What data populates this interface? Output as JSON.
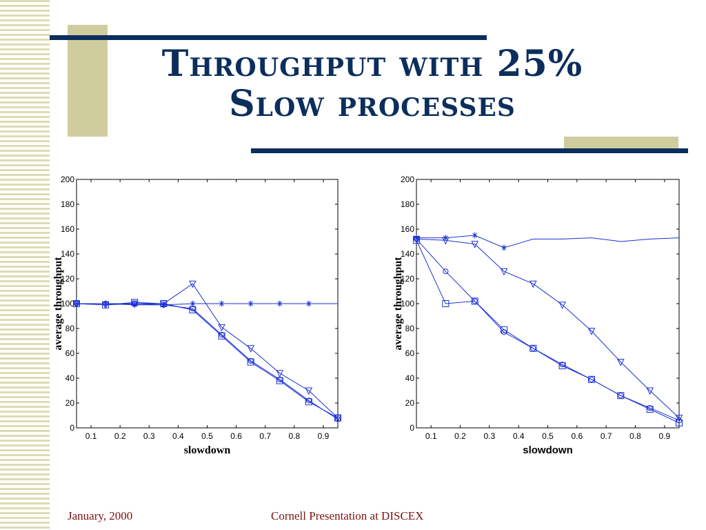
{
  "slide": {
    "title_line1": "Throughput with 25%",
    "title_line2": "Slow processes",
    "footer_left": "January, 2000",
    "footer_center": "Cornell Presentation at DISCEX",
    "colors": {
      "title": "#0b2e5c",
      "accent_bar": "#0b2e5c",
      "accent_block": "#cfcd9e",
      "footer": "#7a1010",
      "series": "#1a2fd6"
    }
  },
  "chart_data": [
    {
      "type": "line",
      "xlabel": "slowdown",
      "ylabel": "average throughput",
      "xlim": [
        0.05,
        0.95
      ],
      "ylim": [
        0,
        200
      ],
      "xticks": [
        0.1,
        0.2,
        0.3,
        0.4,
        0.5,
        0.6,
        0.7,
        0.8,
        0.9
      ],
      "yticks": [
        0,
        20,
        40,
        60,
        80,
        100,
        120,
        140,
        160,
        180,
        200
      ],
      "x": [
        0.05,
        0.15,
        0.25,
        0.35,
        0.45,
        0.55,
        0.65,
        0.75,
        0.85,
        0.95
      ],
      "series": [
        {
          "marker": "star",
          "values": [
            100,
            100,
            99,
            99,
            100,
            100,
            100,
            100,
            100,
            100
          ],
          "markers_until": 0.85
        },
        {
          "marker": "triangle",
          "values": [
            100,
            99,
            100,
            100,
            116,
            81,
            64,
            44,
            30,
            8
          ]
        },
        {
          "marker": "circle",
          "values": [
            100,
            100,
            100,
            99,
            96,
            75,
            54,
            39,
            22,
            7
          ]
        },
        {
          "marker": "square",
          "values": [
            100,
            99,
            101,
            100,
            95,
            74,
            53,
            38,
            21,
            8
          ]
        }
      ]
    },
    {
      "type": "line",
      "xlabel": "slowdown",
      "ylabel": "average throughput",
      "xlim": [
        0.05,
        0.95
      ],
      "ylim": [
        0,
        200
      ],
      "xticks": [
        0.1,
        0.2,
        0.3,
        0.4,
        0.5,
        0.6,
        0.7,
        0.8,
        0.9
      ],
      "yticks": [
        0,
        20,
        40,
        60,
        80,
        100,
        120,
        140,
        160,
        180,
        200
      ],
      "x": [
        0.05,
        0.15,
        0.25,
        0.35,
        0.45,
        0.55,
        0.65,
        0.75,
        0.85,
        0.95
      ],
      "series": [
        {
          "marker": "star",
          "values": [
            153,
            153,
            155,
            145,
            152,
            152,
            153,
            150,
            152,
            153
          ],
          "markers_until": 0.35
        },
        {
          "marker": "triangle",
          "values": [
            152,
            151,
            148,
            126,
            116,
            99,
            78,
            53,
            30,
            8
          ]
        },
        {
          "marker": "circle",
          "values": [
            152,
            126,
            102,
            77,
            64,
            51,
            39,
            26,
            16,
            6
          ]
        },
        {
          "marker": "square",
          "values": [
            151,
            100,
            102,
            79,
            64,
            50,
            39,
            26,
            15,
            4
          ]
        }
      ]
    }
  ]
}
